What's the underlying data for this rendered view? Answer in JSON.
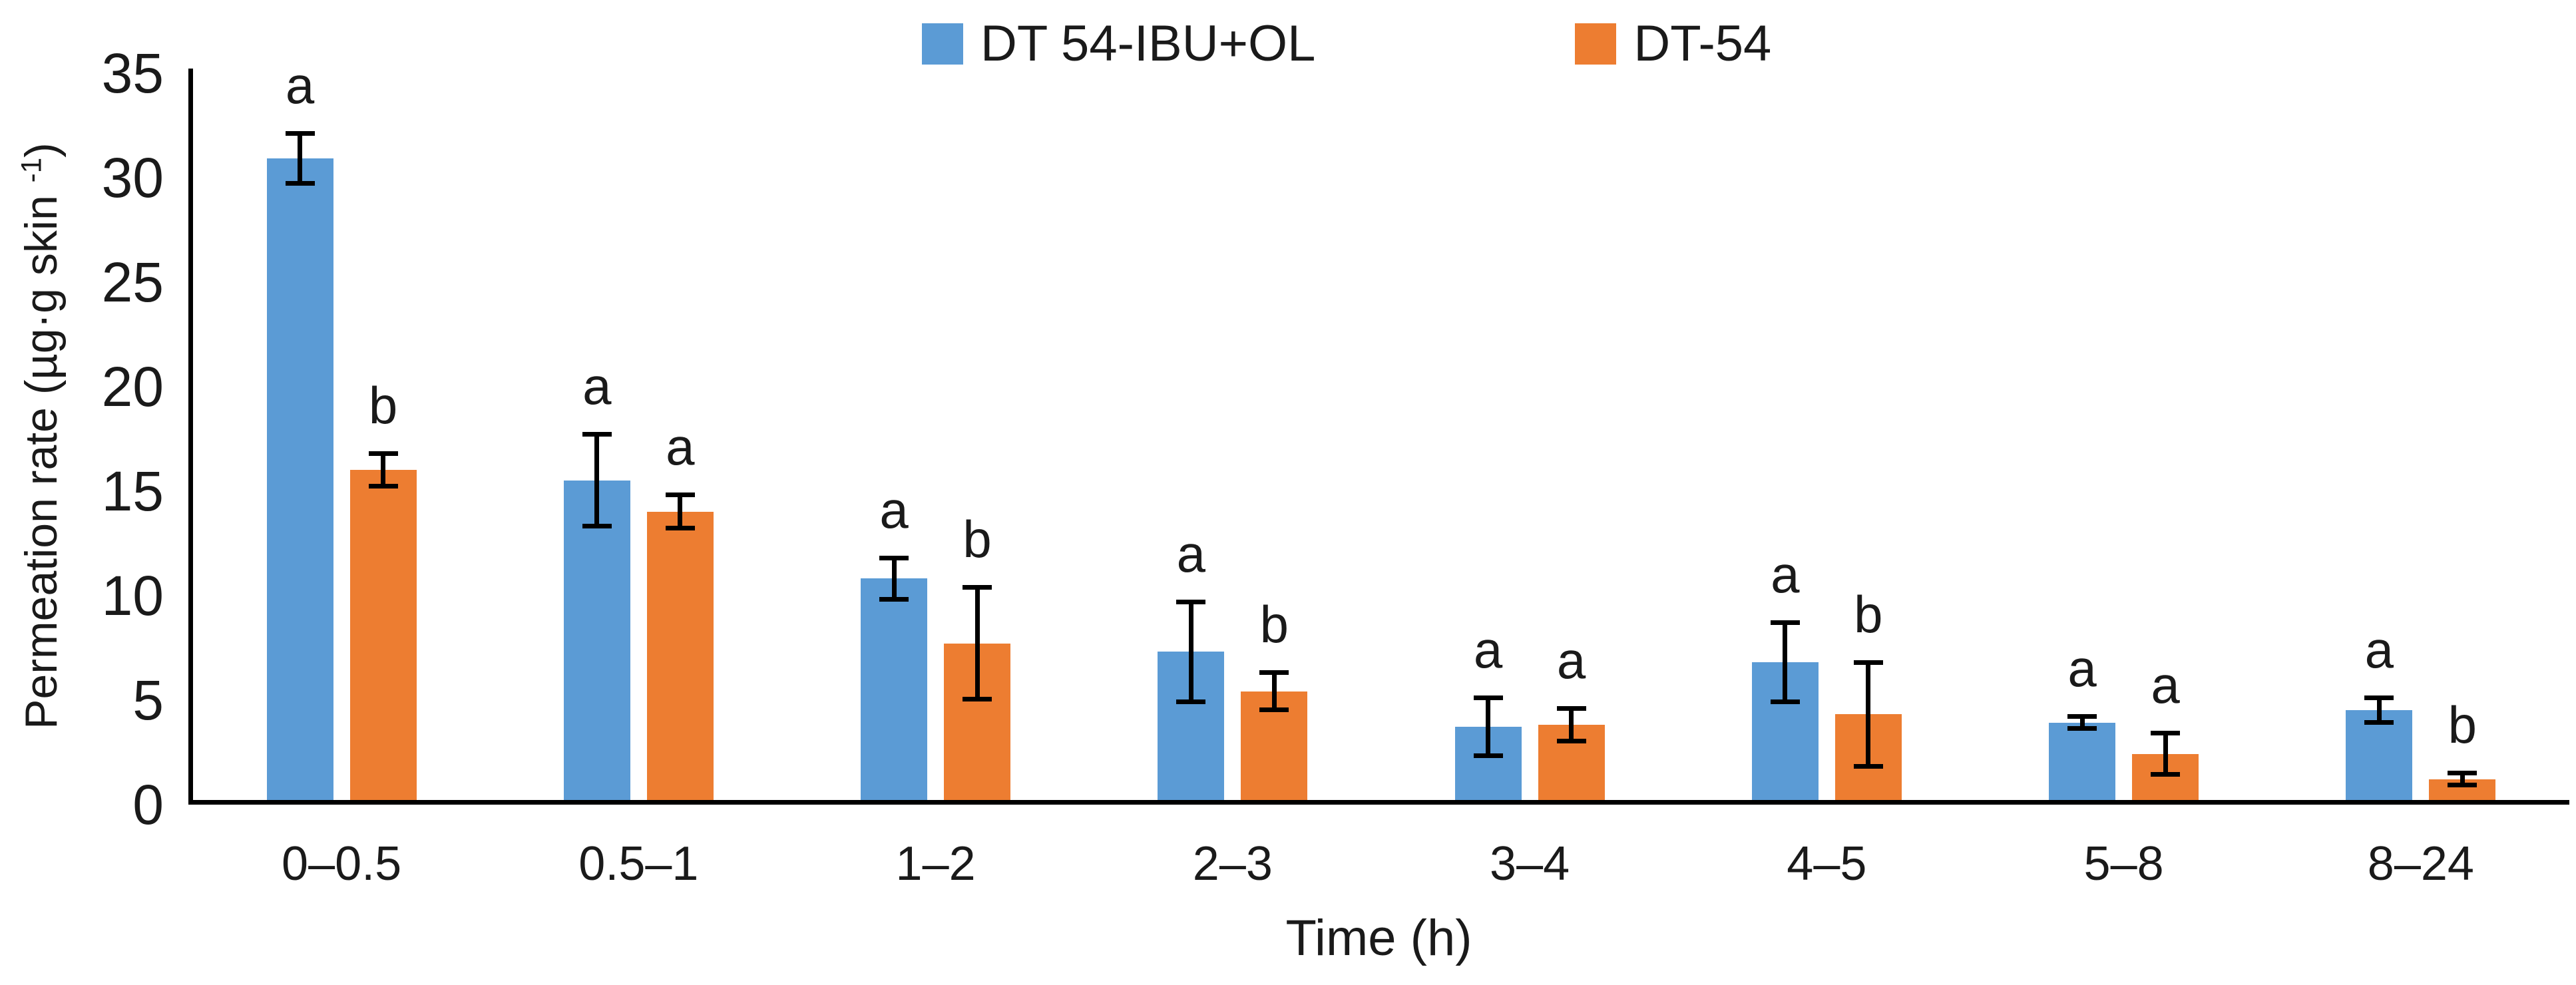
{
  "legend": {
    "entries": [
      {
        "label": "DT 54-IBU+OL",
        "color": "#5B9BD5"
      },
      {
        "label": "DT-54",
        "color": "#ED7D31"
      }
    ]
  },
  "y_axis": {
    "title_prefix": "Permeation rate (µg·g skin ",
    "title_sup": "-1",
    "title_suffix": ")",
    "ticks": [
      0,
      5,
      10,
      15,
      20,
      25,
      30,
      35
    ],
    "min": 0,
    "max": 35
  },
  "x_axis": {
    "title": "Time (h)",
    "categories": [
      "0–0.5",
      "0.5–1",
      "1–2",
      "2–3",
      "3–4",
      "4–5",
      "5–8",
      "8–24"
    ]
  },
  "chart_data": {
    "type": "bar",
    "title": "",
    "xlabel": "Time (h)",
    "ylabel": "Permeation rate (µg·g skin -1)",
    "ylim": [
      0,
      35
    ],
    "grid": false,
    "legend_position": "top",
    "categories": [
      "0–0.5",
      "0.5–1",
      "1–2",
      "2–3",
      "3–4",
      "4–5",
      "5–8",
      "8–24"
    ],
    "series": [
      {
        "name": "DT 54-IBU+OL",
        "color": "#5B9BD5",
        "values": [
          30.7,
          15.3,
          10.6,
          7.1,
          3.5,
          6.6,
          3.7,
          4.3
        ],
        "errors": [
          1.3,
          2.3,
          1.1,
          2.5,
          1.5,
          2.0,
          0.4,
          0.7
        ],
        "letters": [
          "a",
          "a",
          "a",
          "a",
          "a",
          "a",
          "a",
          "a"
        ]
      },
      {
        "name": "DT-54",
        "color": "#ED7D31",
        "values": [
          15.8,
          13.8,
          7.5,
          5.2,
          3.6,
          4.1,
          2.2,
          1.0
        ],
        "errors": [
          0.9,
          0.9,
          2.8,
          1.0,
          0.9,
          2.6,
          1.1,
          0.4
        ],
        "letters": [
          "b",
          "a",
          "b",
          "b",
          "a",
          "b",
          "a",
          "b"
        ]
      }
    ]
  }
}
